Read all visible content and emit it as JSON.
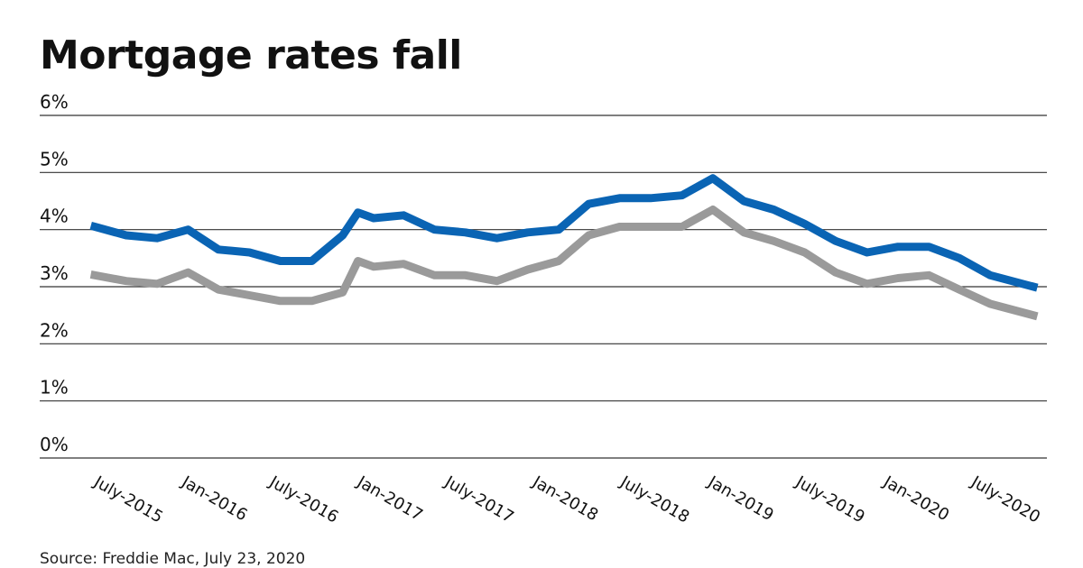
{
  "title": "Mortgage rates fall",
  "source": "Source: Freddie Mac, July 23, 2020",
  "colors": {
    "series_30yr": "#0a64b4",
    "series_15yr": "#9a9a9a",
    "grid": "#333333"
  },
  "chart_data": {
    "type": "line",
    "title": "Mortgage rates fall",
    "xlabel": "",
    "ylabel": "",
    "ylim": [
      0,
      6
    ],
    "y_ticks": [
      "0%",
      "1%",
      "2%",
      "3%",
      "4%",
      "5%",
      "6%"
    ],
    "x_ticks": [
      "July-2015",
      "Jan-2016",
      "July-2016",
      "Jan-2017",
      "July-2017",
      "Jan-2018",
      "July-2018",
      "Jan-2019",
      "July-2019",
      "Jan-2020",
      "July-2020"
    ],
    "grid": true,
    "legend": "none",
    "series": [
      {
        "x": [
          "2015-07",
          "2015-09",
          "2015-11",
          "2016-01",
          "2016-03",
          "2016-05",
          "2016-07",
          "2016-09",
          "2016-11",
          "2016-12",
          "2017-01",
          "2017-03",
          "2017-05",
          "2017-07",
          "2017-09",
          "2017-11",
          "2018-01",
          "2018-03",
          "2018-05",
          "2018-07",
          "2018-09",
          "2018-11",
          "2019-01",
          "2019-03",
          "2019-05",
          "2019-07",
          "2019-09",
          "2019-11",
          "2020-01",
          "2020-03",
          "2020-05",
          "2020-07"
        ],
        "values": [
          4.05,
          3.9,
          3.85,
          4.0,
          3.65,
          3.6,
          3.45,
          3.45,
          3.9,
          4.3,
          4.2,
          4.25,
          4.0,
          3.95,
          3.85,
          3.95,
          4.0,
          4.45,
          4.55,
          4.55,
          4.6,
          4.9,
          4.5,
          4.35,
          4.1,
          3.8,
          3.6,
          3.7,
          3.7,
          3.5,
          3.2,
          3.0
        ]
      },
      {
        "x": [
          "2015-07",
          "2015-09",
          "2015-11",
          "2016-01",
          "2016-03",
          "2016-05",
          "2016-07",
          "2016-09",
          "2016-11",
          "2016-12",
          "2017-01",
          "2017-03",
          "2017-05",
          "2017-07",
          "2017-09",
          "2017-11",
          "2018-01",
          "2018-03",
          "2018-05",
          "2018-07",
          "2018-09",
          "2018-11",
          "2019-01",
          "2019-03",
          "2019-05",
          "2019-07",
          "2019-09",
          "2019-11",
          "2020-01",
          "2020-03",
          "2020-05",
          "2020-07"
        ],
        "values": [
          3.2,
          3.1,
          3.05,
          3.25,
          2.95,
          2.85,
          2.75,
          2.75,
          2.9,
          3.45,
          3.35,
          3.4,
          3.2,
          3.2,
          3.1,
          3.3,
          3.45,
          3.9,
          4.05,
          4.05,
          4.05,
          4.35,
          3.95,
          3.8,
          3.6,
          3.25,
          3.05,
          3.15,
          3.2,
          2.95,
          2.7,
          2.5
        ]
      }
    ]
  }
}
